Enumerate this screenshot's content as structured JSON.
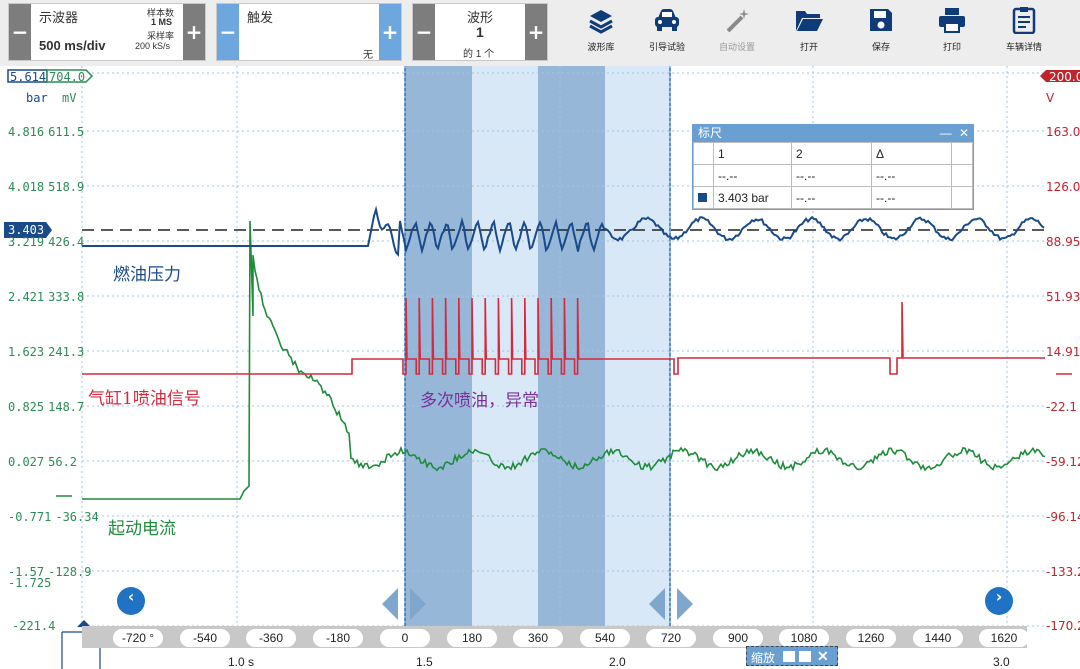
{
  "toolbar": {
    "scope": {
      "title": "示波器",
      "timebase": "500 ms/div",
      "samples_label": "样本数",
      "samples_value": "1 MS",
      "rate_label": "采样率",
      "rate_value": "200 kS/s",
      "minus": "−",
      "plus": "+"
    },
    "trigger": {
      "title": "触发",
      "mode": "无",
      "minus": "−",
      "plus": "+"
    },
    "waveform": {
      "title": "波形",
      "index": "1",
      "count": "的 1 个",
      "minus": "−",
      "plus": "+"
    },
    "tools": [
      {
        "label": "波形库",
        "icon": "waveform-library-icon"
      },
      {
        "label": "引导试验",
        "icon": "car-icon"
      },
      {
        "label": "自动设置",
        "icon": "magic-wand-icon",
        "disabled": true
      },
      {
        "label": "打开",
        "icon": "folder-open-icon"
      },
      {
        "label": "保存",
        "icon": "save-disk-icon"
      },
      {
        "label": "打印",
        "icon": "printer-icon"
      },
      {
        "label": "车辆详情",
        "icon": "clipboard-icon"
      }
    ]
  },
  "axes": {
    "left_top_bar": "5.614",
    "left_top_mv": "704.0",
    "left_unit_bar": "bar",
    "left_unit_mv": "mV",
    "left_ticks": [
      {
        "bar": "4.816",
        "mv": "611.5"
      },
      {
        "bar": "4.018",
        "mv": "518.9"
      },
      {
        "bar": "3.219",
        "mv": "426.4"
      },
      {
        "bar": "2.421",
        "mv": "333.8"
      },
      {
        "bar": "1.623",
        "mv": "241.3"
      },
      {
        "bar": "0.825",
        "mv": "148.7"
      },
      {
        "bar": "0.027",
        "mv": "56.2"
      },
      {
        "bar": "-0.771",
        "mv": "-36.34"
      },
      {
        "bar": "-1.57",
        "mv": "-128.9"
      },
      {
        "bar": "",
        "mv": "-221.4"
      }
    ],
    "left_extra": "-1.725",
    "right_top": "200.0",
    "right_unit": "V",
    "right_ticks": [
      "163.0",
      "126.0",
      "88.95",
      "51.93",
      "14.91",
      "-22.1",
      "-59.12",
      "-96.14",
      "-133.2",
      "-170.2"
    ],
    "marker_value": "3.403"
  },
  "annotations": {
    "fuel_pressure": "燃油压力",
    "injector": "气缸1喷油信号",
    "abnormal": "多次喷油，异常",
    "starter_current": "起动电流"
  },
  "ruler": {
    "title": "标尺",
    "minimize": "—",
    "close": "✕",
    "headers": [
      "1",
      "2",
      "Δ"
    ],
    "rows": [
      [
        "--.--",
        "--.--",
        "--.--"
      ],
      [
        "3.403 bar",
        "--.--",
        "--.--"
      ]
    ]
  },
  "bottom": {
    "degrees": [
      "-720 °",
      "-540",
      "-360",
      "-180",
      "0",
      "180",
      "360",
      "540",
      "720",
      "900",
      "1080",
      "1260",
      "1440",
      "1620"
    ],
    "times": [
      "1.0 s",
      "1.5",
      "2.0",
      "3.0"
    ],
    "zoom_label": "缩放",
    "zoom_close": "✕"
  },
  "colors": {
    "fuel_pressure": "#1a4a8a",
    "injector": "#d42a3c",
    "starter_current": "#1f8c3b",
    "grid": "#9dc6e0",
    "highlight": "#d9e8f7",
    "highlight_dark": "#7fa7cd"
  }
}
